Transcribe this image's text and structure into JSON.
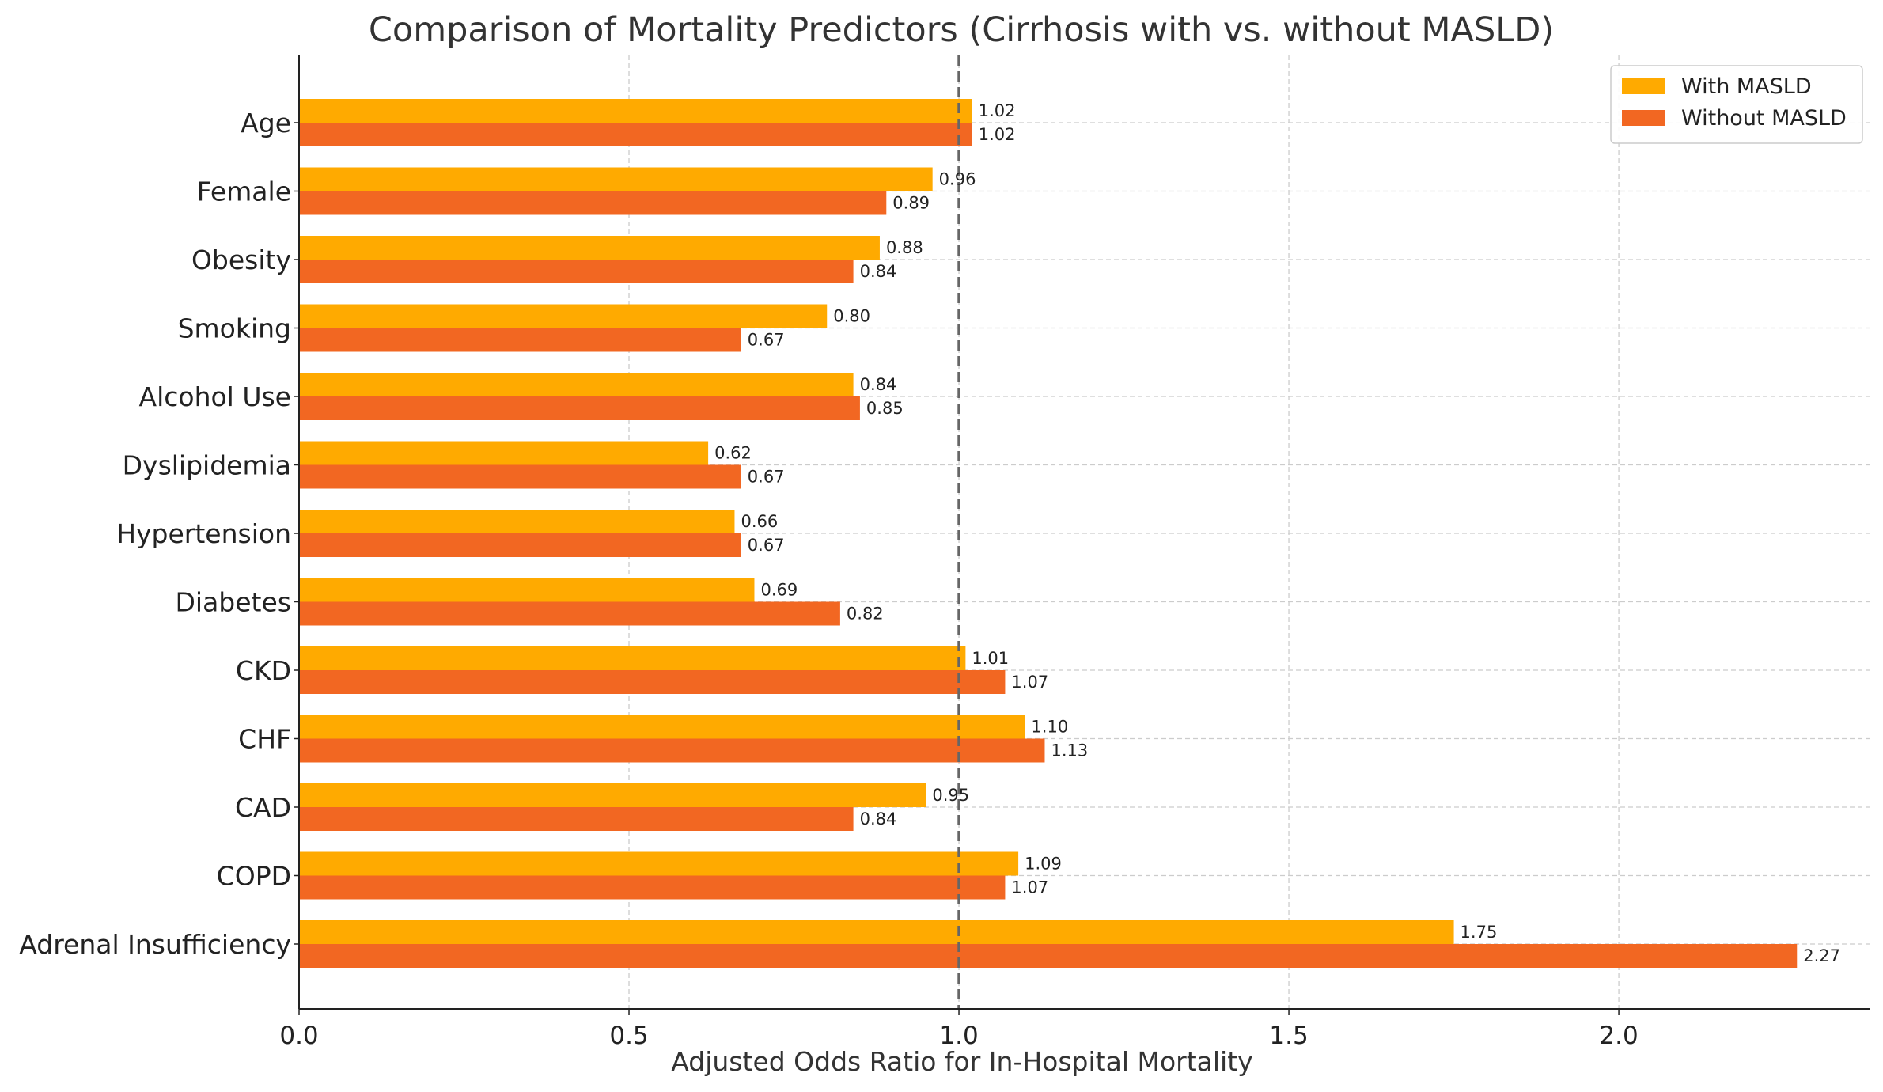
{
  "chart_data": {
    "type": "bar",
    "orientation": "horizontal",
    "title": "Comparison of Mortality Predictors (Cirrhosis with vs. without MASLD)",
    "xlabel": "Adjusted Odds Ratio for In-Hospital Mortality",
    "ylabel": "",
    "categories": [
      "Age",
      "Female",
      "Obesity",
      "Smoking",
      "Alcohol Use",
      "Dyslipidemia",
      "Hypertension",
      "Diabetes",
      "CKD",
      "CHF",
      "CAD",
      "COPD",
      "Adrenal Insufficiency"
    ],
    "series": [
      {
        "name": "With MASLD",
        "color": "#FFAA00",
        "values": [
          1.02,
          0.96,
          0.88,
          0.8,
          0.84,
          0.62,
          0.66,
          0.69,
          1.01,
          1.1,
          0.95,
          1.09,
          1.75
        ]
      },
      {
        "name": "Without MASLD",
        "color": "#F26722",
        "values": [
          1.02,
          0.89,
          0.84,
          0.67,
          0.85,
          0.67,
          0.67,
          0.82,
          1.07,
          1.13,
          0.84,
          1.07,
          2.27
        ]
      }
    ],
    "xlim": [
      0,
      2.38
    ],
    "xticks": [
      0.0,
      0.5,
      1.0,
      1.5,
      2.0
    ],
    "xtick_labels": [
      "0.0",
      "0.5",
      "1.0",
      "1.5",
      "2.0"
    ],
    "reference_line": 1.0,
    "grid": true,
    "legend_position": "top-right"
  }
}
